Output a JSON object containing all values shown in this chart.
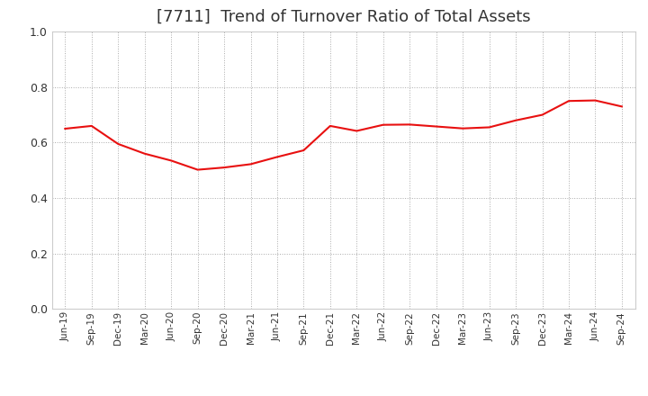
{
  "title": "[7711]  Trend of Turnover Ratio of Total Assets",
  "title_fontsize": 13,
  "line_color": "#e81010",
  "line_width": 1.5,
  "background_color": "#ffffff",
  "grid_color": "#aaaaaa",
  "ylim": [
    0.0,
    1.0
  ],
  "yticks": [
    0.0,
    0.2,
    0.4,
    0.6,
    0.8,
    1.0
  ],
  "labels": [
    "Jun-19",
    "Sep-19",
    "Dec-19",
    "Mar-20",
    "Jun-20",
    "Sep-20",
    "Dec-20",
    "Mar-21",
    "Jun-21",
    "Sep-21",
    "Dec-21",
    "Mar-22",
    "Jun-22",
    "Sep-22",
    "Dec-22",
    "Mar-23",
    "Jun-23",
    "Sep-23",
    "Dec-23",
    "Mar-24",
    "Jun-24",
    "Sep-24"
  ],
  "values": [
    0.65,
    0.66,
    0.595,
    0.56,
    0.535,
    0.502,
    0.51,
    0.522,
    0.548,
    0.572,
    0.66,
    0.642,
    0.664,
    0.665,
    0.658,
    0.651,
    0.655,
    0.68,
    0.7,
    0.75,
    0.752,
    0.73
  ]
}
